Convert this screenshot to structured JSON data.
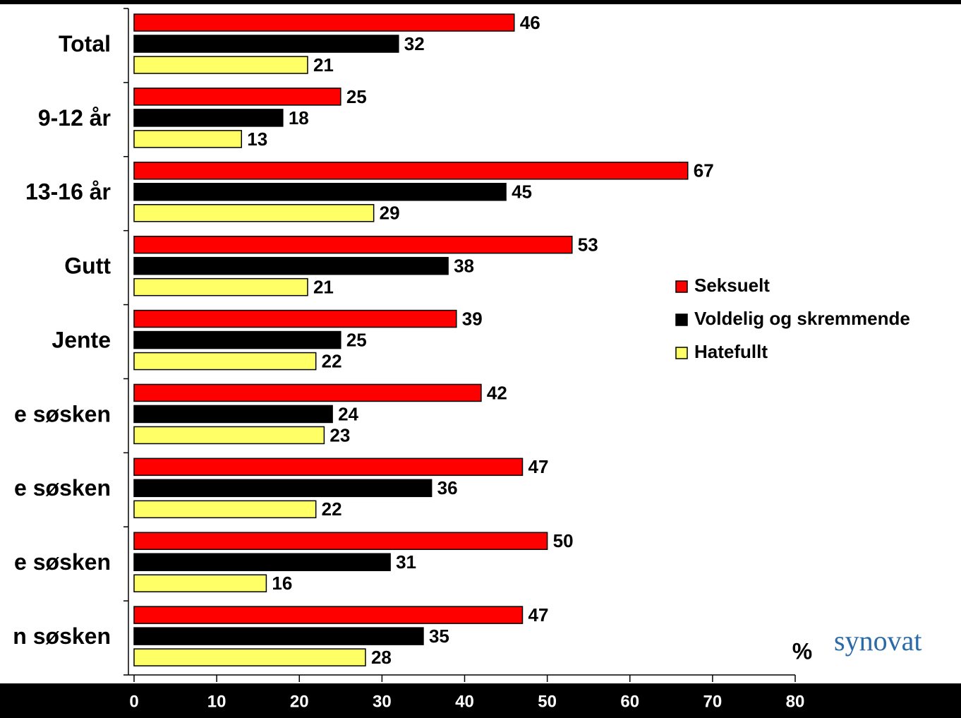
{
  "chart_data": {
    "type": "hbar",
    "categories": [
      "Total",
      "9-12 år",
      "13-16 år",
      "Gutt",
      "Jente",
      "e søsken",
      "e søsken",
      "e søsken",
      "n søsken"
    ],
    "series": [
      {
        "name": "Seksuelt",
        "color": "#ff0000",
        "values": [
          46,
          25,
          67,
          53,
          39,
          42,
          47,
          50,
          47
        ]
      },
      {
        "name": "Voldelig og skremmende",
        "color": "#000000",
        "values": [
          32,
          18,
          45,
          38,
          25,
          24,
          36,
          31,
          35
        ]
      },
      {
        "name": "Hatefullt",
        "color": "#ffff66",
        "values": [
          21,
          13,
          29,
          21,
          22,
          23,
          22,
          16,
          28
        ]
      }
    ],
    "xlim": [
      0,
      80
    ],
    "xticks": [
      0,
      10,
      20,
      30,
      40,
      50,
      60,
      70,
      80
    ],
    "axis_unit": "%",
    "legend": "right",
    "grid": false,
    "logo": "synovat"
  }
}
